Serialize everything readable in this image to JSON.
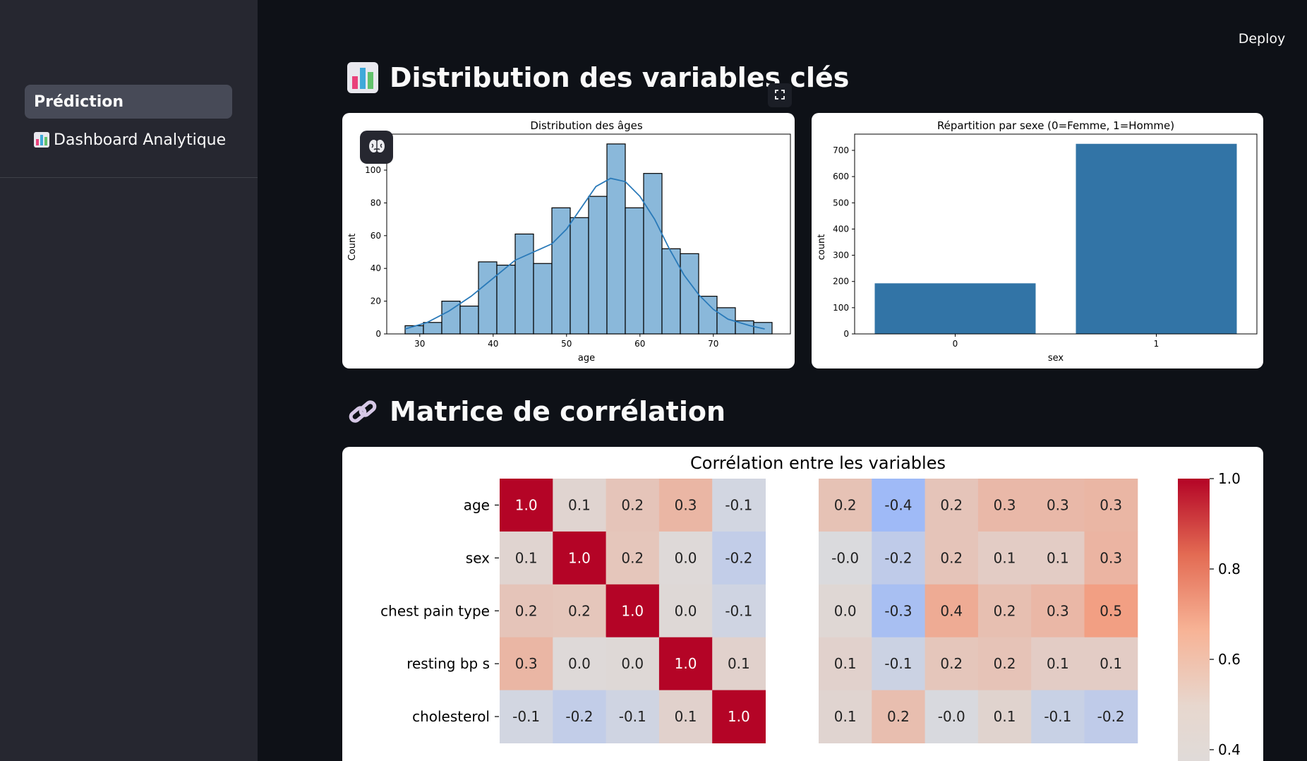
{
  "app": {
    "deploy_label": "Deploy"
  },
  "sidebar": {
    "items": [
      {
        "label": "Prédiction",
        "icon": "",
        "active": true
      },
      {
        "label": "Dashboard Analytique",
        "icon": "bar-chart-icon",
        "active": false
      }
    ]
  },
  "sections": [
    {
      "title": "Distribution des variables clés",
      "icon": "bar-chart-icon"
    },
    {
      "title": "Matrice de corrélation",
      "icon": "link-icon"
    }
  ],
  "chart_data": [
    {
      "type": "bar",
      "title": "Distribution des âges",
      "xlabel": "age",
      "ylabel": "Count",
      "bins": [
        {
          "start": 28,
          "end": 30.5,
          "count": 5
        },
        {
          "start": 30.5,
          "end": 33,
          "count": 7
        },
        {
          "start": 33,
          "end": 35.5,
          "count": 20
        },
        {
          "start": 35.5,
          "end": 38,
          "count": 17
        },
        {
          "start": 38,
          "end": 40.5,
          "count": 44
        },
        {
          "start": 40.5,
          "end": 43,
          "count": 42
        },
        {
          "start": 43,
          "end": 45.5,
          "count": 61
        },
        {
          "start": 45.5,
          "end": 48,
          "count": 43
        },
        {
          "start": 48,
          "end": 50.5,
          "count": 77
        },
        {
          "start": 50.5,
          "end": 53,
          "count": 71
        },
        {
          "start": 53,
          "end": 55.5,
          "count": 84
        },
        {
          "start": 55.5,
          "end": 58,
          "count": 116
        },
        {
          "start": 58,
          "end": 60.5,
          "count": 77
        },
        {
          "start": 60.5,
          "end": 63,
          "count": 98
        },
        {
          "start": 63,
          "end": 65.5,
          "count": 52
        },
        {
          "start": 65.5,
          "end": 68,
          "count": 49
        },
        {
          "start": 68,
          "end": 70.5,
          "count": 23
        },
        {
          "start": 70.5,
          "end": 73,
          "count": 16
        },
        {
          "start": 73,
          "end": 75.5,
          "count": 8
        },
        {
          "start": 75.5,
          "end": 78,
          "count": 7
        }
      ],
      "kde": {
        "x": [
          28,
          31,
          34,
          37,
          40,
          43,
          46,
          48,
          50,
          52,
          54,
          56,
          58,
          60,
          62,
          64,
          66,
          68,
          70,
          72,
          75,
          77
        ],
        "y": [
          3,
          7,
          14,
          23,
          34,
          45,
          51,
          55,
          64,
          77,
          90,
          95,
          93,
          84,
          70,
          52,
          36,
          24,
          15,
          9,
          5,
          3
        ]
      },
      "xticks": [
        30,
        40,
        50,
        60,
        70
      ],
      "yticks": [
        0,
        20,
        40,
        60,
        80,
        100
      ],
      "xlim": [
        25.5,
        80.5
      ],
      "ylim": [
        0,
        122
      ],
      "color": "#8ab8da",
      "kde_color": "#2a7ab9"
    },
    {
      "type": "bar",
      "title": "Répartition par sexe (0=Femme, 1=Homme)",
      "xlabel": "sex",
      "ylabel": "count",
      "categories": [
        "0",
        "1"
      ],
      "values": [
        193,
        725
      ],
      "yticks": [
        0,
        100,
        200,
        300,
        400,
        500,
        600,
        700
      ],
      "ylim": [
        0,
        762
      ],
      "color": "#3274a6"
    },
    {
      "type": "heatmap",
      "title": "Corrélation entre les variables",
      "rows": [
        "age",
        "sex",
        "chest pain type",
        "resting bp s",
        "cholesterol"
      ],
      "cell_labels": [
        [
          "1.0",
          "0.1",
          "0.2",
          "0.3",
          "-0.1",
          "0.2",
          "-0.4",
          "0.2",
          "0.3",
          "0.3",
          "0.3"
        ],
        [
          "0.1",
          "1.0",
          "0.2",
          "0.0",
          "-0.2",
          "-0.0",
          "-0.2",
          "0.2",
          "0.1",
          "0.1",
          "0.3"
        ],
        [
          "0.2",
          "0.2",
          "1.0",
          "0.0",
          "-0.1",
          "0.0",
          "-0.3",
          "0.4",
          "0.2",
          "0.3",
          "0.5"
        ],
        [
          "0.3",
          "0.0",
          "0.0",
          "1.0",
          "0.1",
          "0.1",
          "-0.1",
          "0.2",
          "0.2",
          "0.1",
          "0.1"
        ],
        [
          "-0.1",
          "-0.2",
          "-0.1",
          "0.1",
          "1.0",
          "0.1",
          "0.2",
          "-0.0",
          "0.1",
          "-0.1",
          "-0.2"
        ]
      ],
      "values": [
        [
          1.0,
          0.06,
          0.18,
          0.29,
          -0.07,
          0.2,
          -0.39,
          0.18,
          0.27,
          0.27,
          0.29
        ],
        [
          0.06,
          1.0,
          0.17,
          0.02,
          -0.17,
          -0.02,
          -0.19,
          0.18,
          0.12,
          0.12,
          0.3
        ],
        [
          0.18,
          0.17,
          1.0,
          0.03,
          -0.09,
          0.04,
          -0.33,
          0.37,
          0.22,
          0.28,
          0.46
        ],
        [
          0.29,
          0.02,
          0.03,
          1.0,
          0.08,
          0.08,
          -0.11,
          0.17,
          0.19,
          0.12,
          0.12
        ],
        [
          -0.07,
          -0.17,
          -0.09,
          0.08,
          1.0,
          0.06,
          0.23,
          -0.03,
          0.07,
          -0.13,
          -0.19
        ]
      ],
      "colorbar_ticks": [
        "1.0",
        "0.8",
        "0.6",
        "0.4"
      ],
      "colormap": "coolwarm"
    }
  ]
}
